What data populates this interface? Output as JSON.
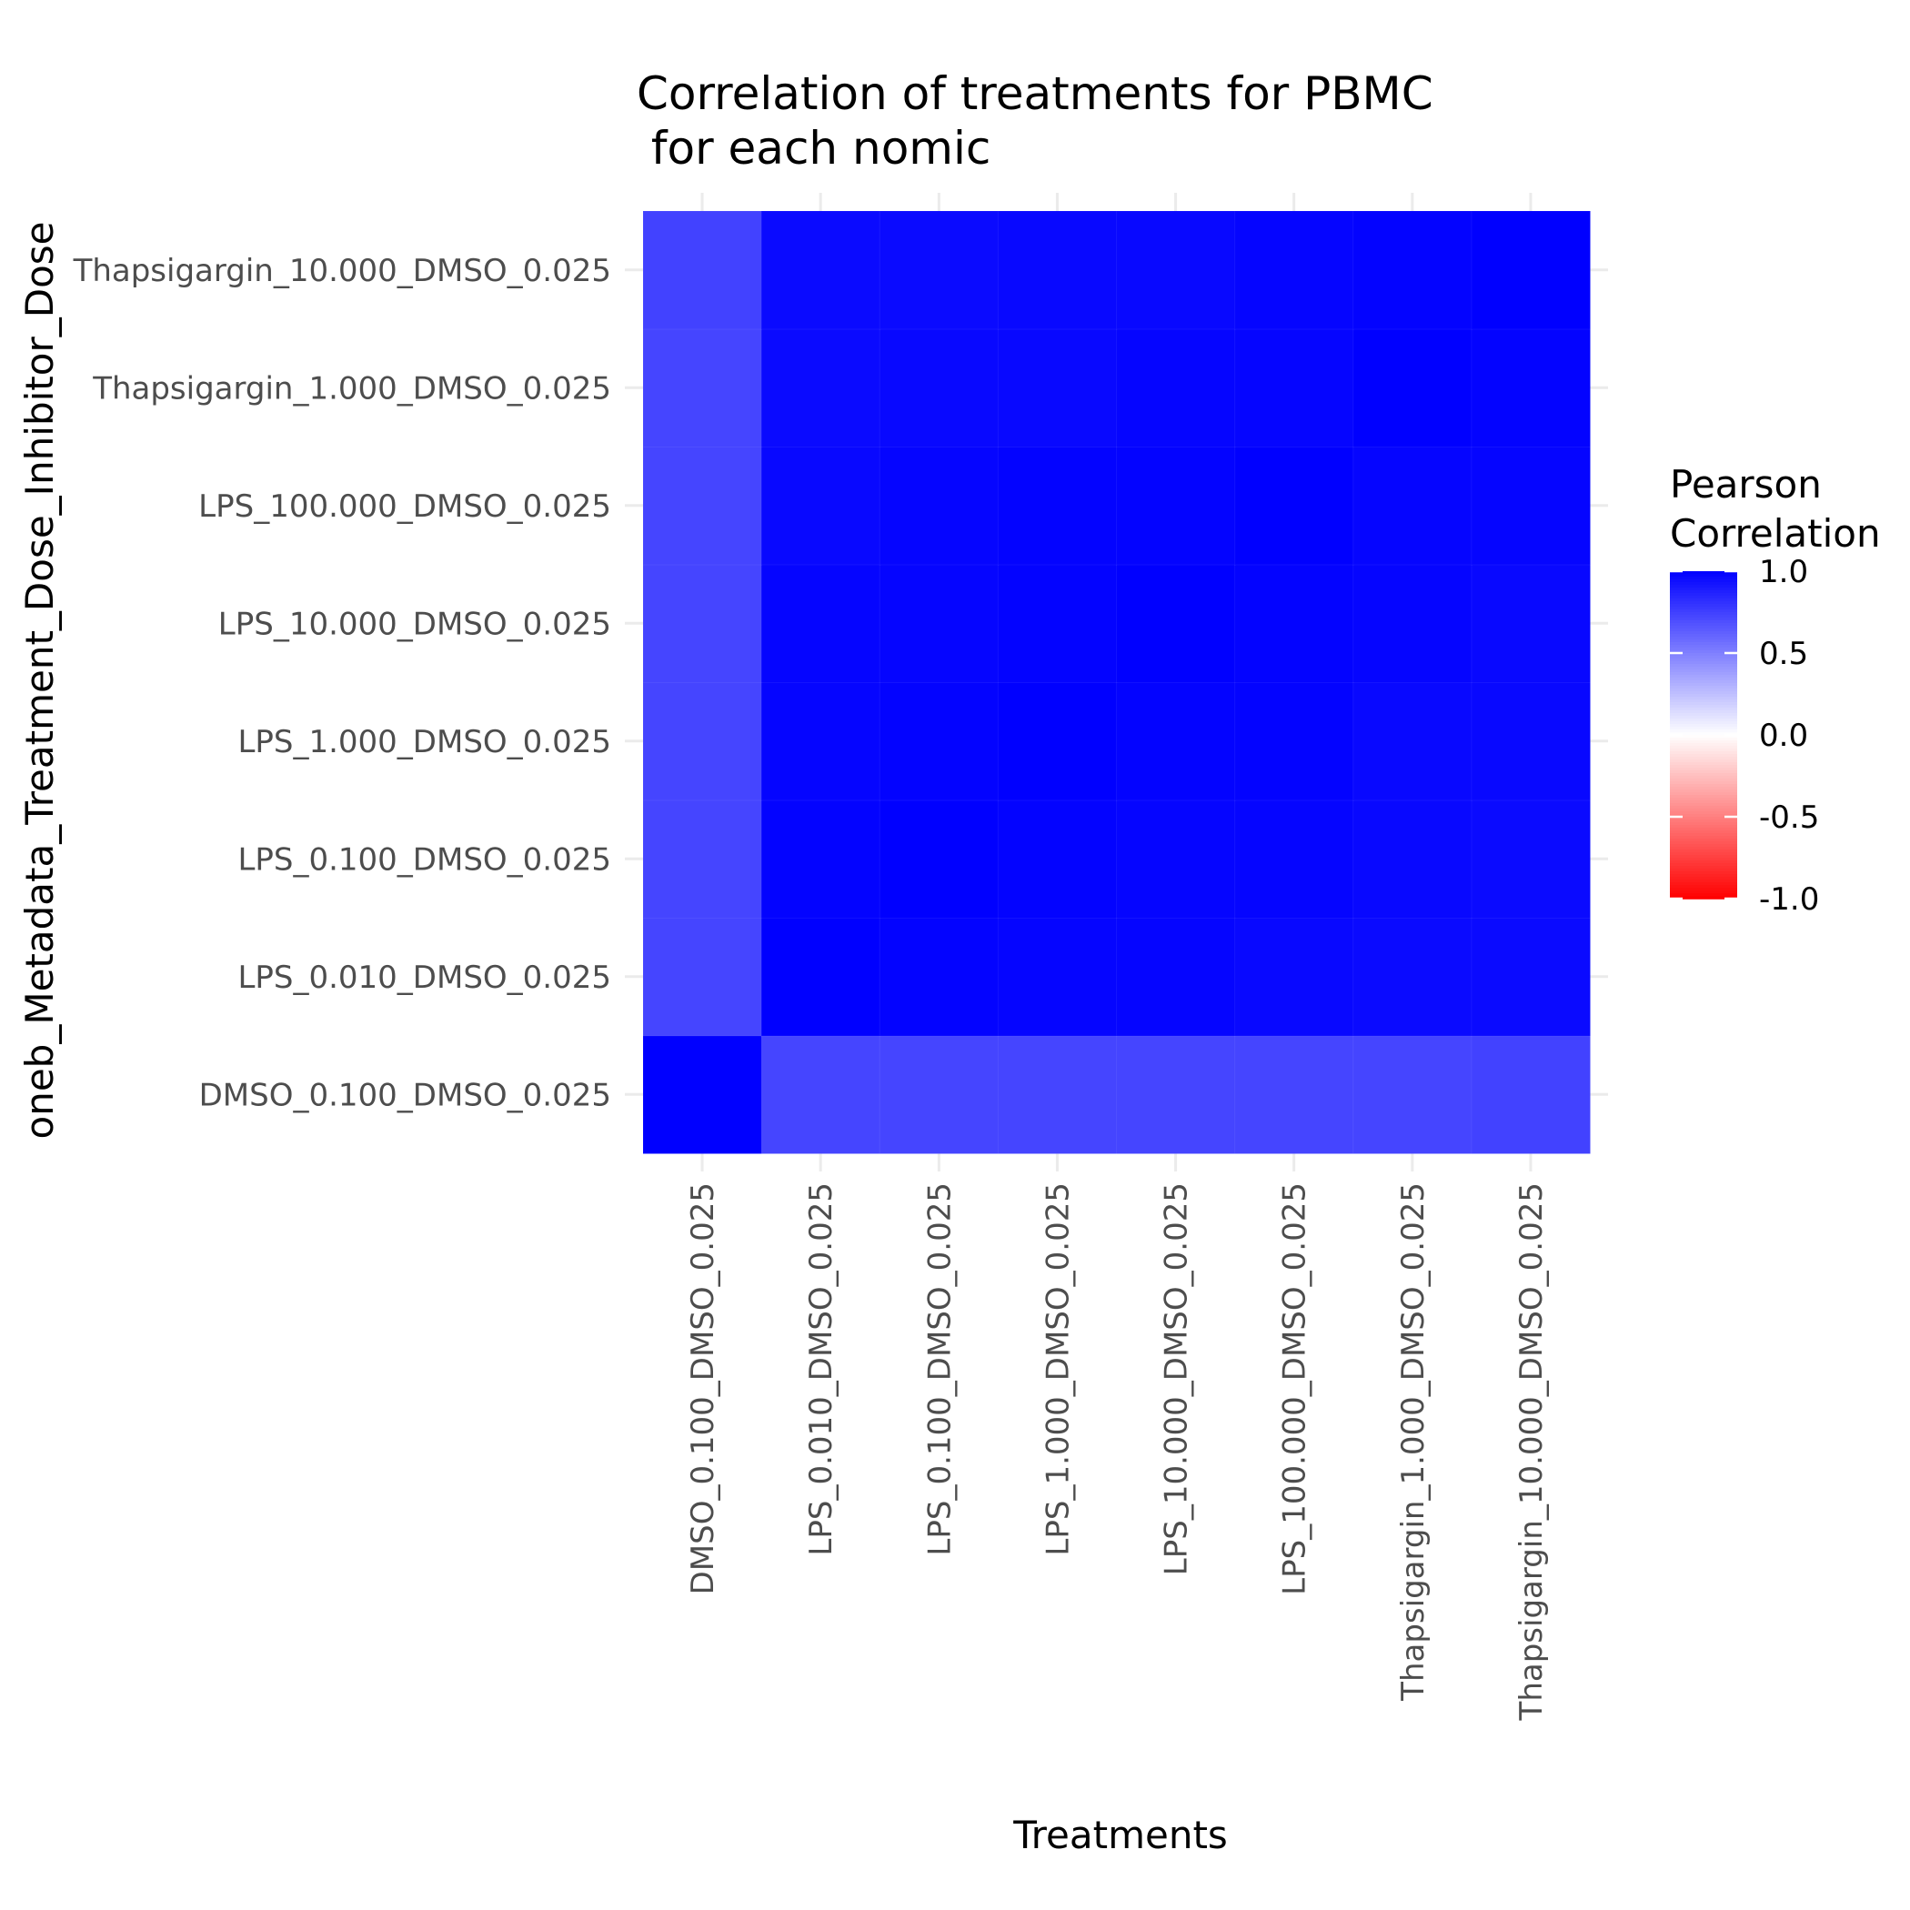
{
  "chart_data": {
    "type": "heatmap",
    "title": "Correlation of treatments for PBMC\n for each nomic",
    "title_lines": [
      "Correlation of treatments for PBMC",
      " for each nomic"
    ],
    "xlabel": "Treatments",
    "ylabel": "oneb_Metadata_Treatment_Dose_Inhibitor_Dose",
    "x_categories": [
      "DMSO_0.100_DMSO_0.025",
      "LPS_0.010_DMSO_0.025",
      "LPS_0.100_DMSO_0.025",
      "LPS_1.000_DMSO_0.025",
      "LPS_10.000_DMSO_0.025",
      "LPS_100.000_DMSO_0.025",
      "Thapsigargin_1.000_DMSO_0.025",
      "Thapsigargin_10.000_DMSO_0.025"
    ],
    "y_categories": [
      "DMSO_0.100_DMSO_0.025",
      "LPS_0.010_DMSO_0.025",
      "LPS_0.100_DMSO_0.025",
      "LPS_1.000_DMSO_0.025",
      "LPS_10.000_DMSO_0.025",
      "LPS_100.000_DMSO_0.025",
      "Thapsigargin_1.000_DMSO_0.025",
      "Thapsigargin_10.000_DMSO_0.025"
    ],
    "values": [
      [
        1.0,
        0.73,
        0.73,
        0.73,
        0.73,
        0.73,
        0.73,
        0.74
      ],
      [
        0.73,
        1.0,
        0.99,
        0.98,
        0.98,
        0.97,
        0.96,
        0.96
      ],
      [
        0.73,
        0.99,
        1.0,
        0.99,
        0.98,
        0.98,
        0.97,
        0.96
      ],
      [
        0.73,
        0.98,
        0.99,
        1.0,
        0.99,
        0.99,
        0.97,
        0.97
      ],
      [
        0.73,
        0.98,
        0.98,
        0.99,
        1.0,
        0.99,
        0.98,
        0.97
      ],
      [
        0.73,
        0.97,
        0.98,
        0.99,
        0.99,
        1.0,
        0.98,
        0.98
      ],
      [
        0.73,
        0.96,
        0.97,
        0.97,
        0.98,
        0.98,
        1.0,
        0.99
      ],
      [
        0.74,
        0.96,
        0.96,
        0.97,
        0.97,
        0.98,
        0.99,
        1.0
      ]
    ],
    "legend": {
      "title_lines": [
        "Pearson",
        "Correlation"
      ],
      "range": [
        -1.0,
        1.0
      ],
      "breaks": [
        1.0,
        0.5,
        0.0,
        -0.5,
        -1.0
      ],
      "break_labels": [
        "1.0",
        "0.5",
        "0.0",
        "-0.5",
        "-1.0"
      ],
      "placement": "right"
    },
    "colors": {
      "low": "#ff0000",
      "mid": "#ffffff",
      "high": "#0000ff"
    },
    "grid": true
  }
}
